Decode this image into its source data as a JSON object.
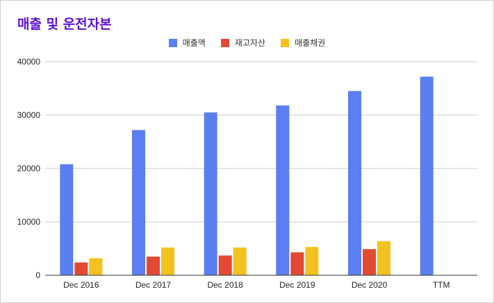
{
  "chart_data": {
    "type": "bar",
    "title": "매출 및 운전자본",
    "categories": [
      "Dec 2016",
      "Dec 2017",
      "Dec 2018",
      "Dec 2019",
      "Dec 2020",
      "TTM"
    ],
    "series": [
      {
        "name": "매출액",
        "color": "#5b7ef0",
        "values": [
          20800,
          27200,
          30500,
          31800,
          34500,
          37200
        ]
      },
      {
        "name": "재고자산",
        "color": "#e24a33",
        "values": [
          2400,
          3500,
          3700,
          4300,
          4900,
          null
        ]
      },
      {
        "name": "매출채권",
        "color": "#f4c21f",
        "values": [
          3200,
          5200,
          5200,
          5300,
          6400,
          null
        ]
      }
    ],
    "ylim": [
      0,
      40000
    ],
    "yticks": [
      "0",
      "10000",
      "20000",
      "30000",
      "40000"
    ],
    "grid": true,
    "legend_position": "top"
  }
}
